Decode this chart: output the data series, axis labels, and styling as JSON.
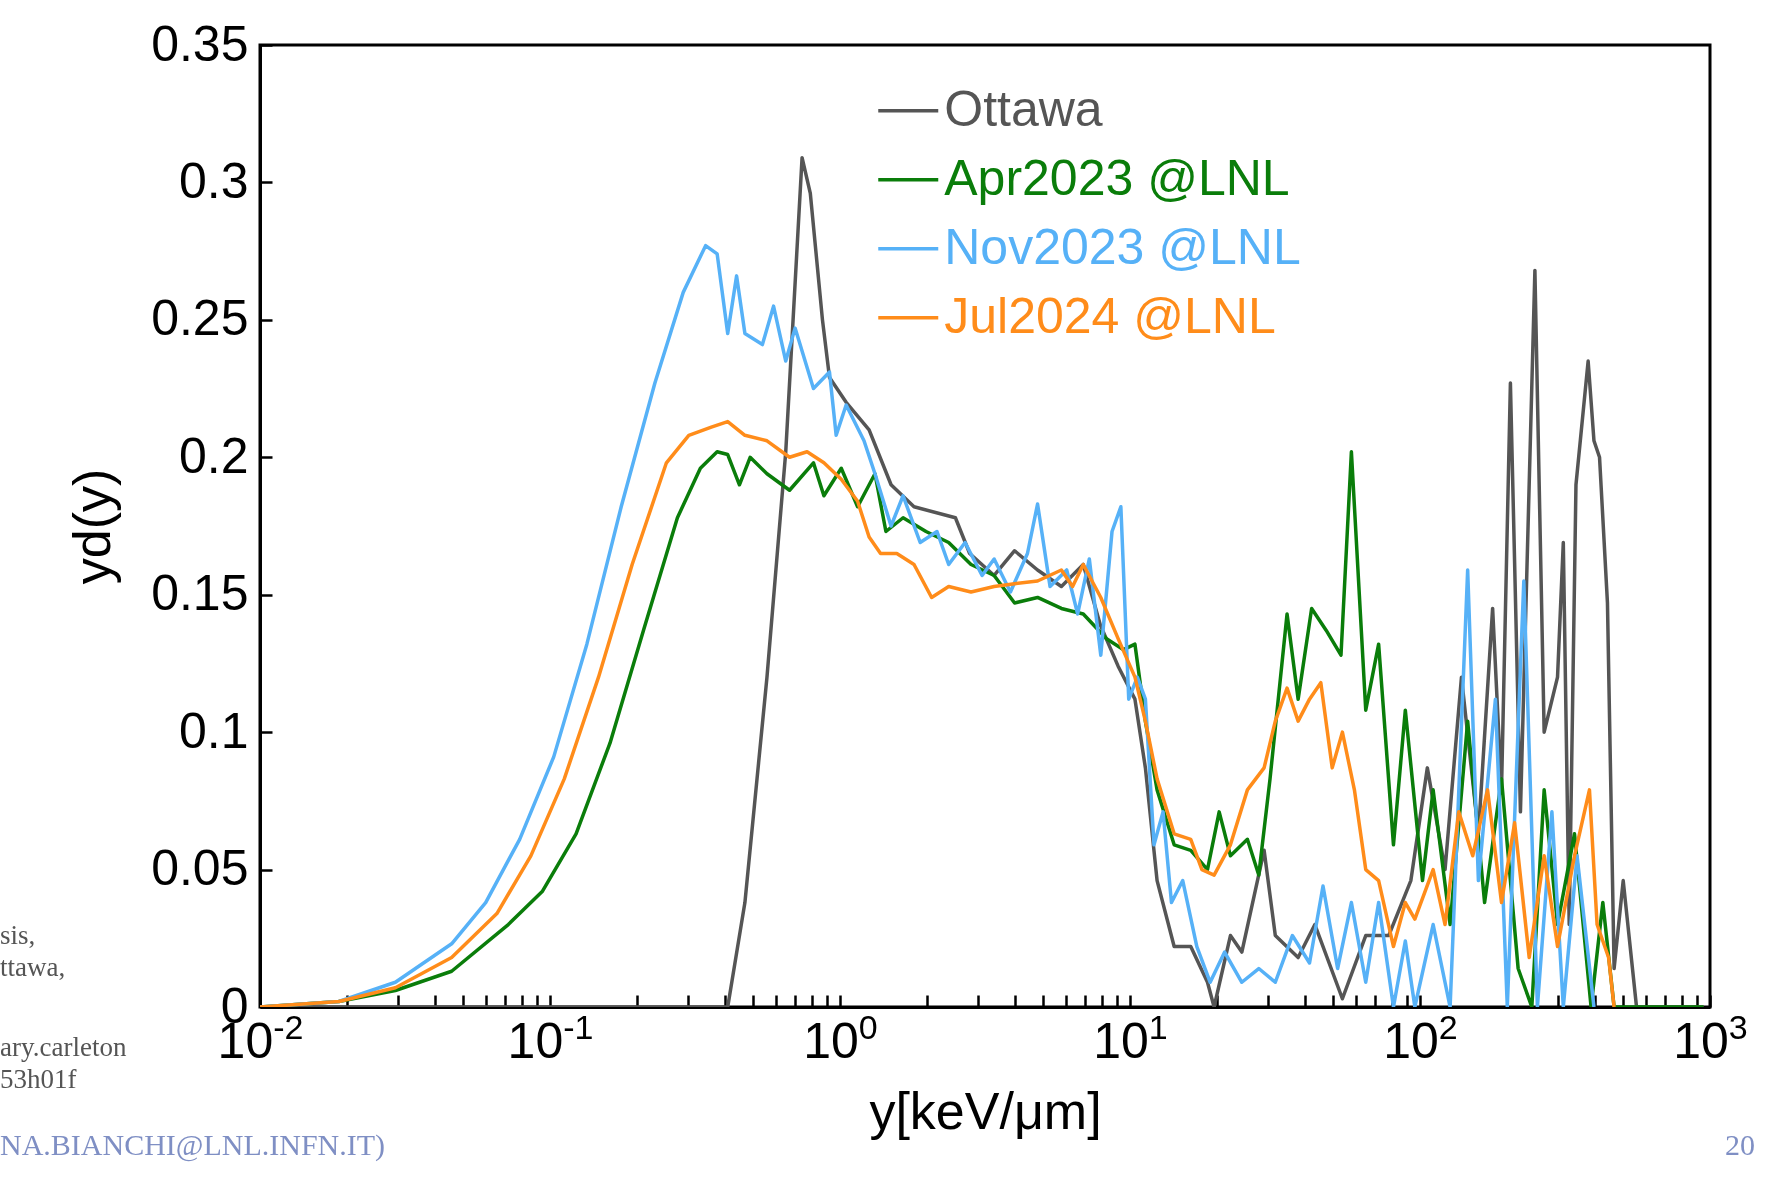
{
  "chart_data": {
    "type": "line",
    "xlabel": "y[keV/μm]",
    "ylabel": "yd(y)",
    "log": "x",
    "xlim": [
      0.01,
      1000
    ],
    "ylim": [
      0,
      0.35
    ],
    "xticks": [
      {
        "value": 0.01,
        "label": "10$^{-2}$"
      },
      {
        "value": 0.02,
        "label": null
      },
      {
        "value": 0.03,
        "label": null
      },
      {
        "value": 0.04,
        "label": null
      },
      {
        "value": 0.05,
        "label": null
      },
      {
        "value": 0.06,
        "label": null
      },
      {
        "value": 0.07,
        "label": null
      },
      {
        "value": 0.08,
        "label": null
      },
      {
        "value": 0.09,
        "label": null
      },
      {
        "value": 0.1,
        "label": "10$^{-1}$"
      },
      {
        "value": 0.2,
        "label": null
      },
      {
        "value": 0.3,
        "label": null
      },
      {
        "value": 0.4,
        "label": null
      },
      {
        "value": 0.5,
        "label": null
      },
      {
        "value": 0.6,
        "label": null
      },
      {
        "value": 0.7,
        "label": null
      },
      {
        "value": 0.8,
        "label": null
      },
      {
        "value": 0.9,
        "label": null
      },
      {
        "value": 1,
        "label": "10$^{0}$"
      },
      {
        "value": 2,
        "label": null
      },
      {
        "value": 3,
        "label": null
      },
      {
        "value": 4,
        "label": null
      },
      {
        "value": 5,
        "label": null
      },
      {
        "value": 6,
        "label": null
      },
      {
        "value": 7,
        "label": null
      },
      {
        "value": 8,
        "label": null
      },
      {
        "value": 9,
        "label": null
      },
      {
        "value": 10,
        "label": "10$^{1}$"
      },
      {
        "value": 20,
        "label": null
      },
      {
        "value": 30,
        "label": null
      },
      {
        "value": 40,
        "label": null
      },
      {
        "value": 50,
        "label": null
      },
      {
        "value": 60,
        "label": null
      },
      {
        "value": 70,
        "label": null
      },
      {
        "value": 80,
        "label": null
      },
      {
        "value": 90,
        "label": null
      },
      {
        "value": 100,
        "label": "10$^{2}$"
      },
      {
        "value": 200,
        "label": null
      },
      {
        "value": 300,
        "label": null
      },
      {
        "value": 400,
        "label": null
      },
      {
        "value": 500,
        "label": null
      },
      {
        "value": 600,
        "label": null
      },
      {
        "value": 700,
        "label": null
      },
      {
        "value": 800,
        "label": null
      },
      {
        "value": 900,
        "label": null
      },
      {
        "value": 1000,
        "label": "10$^{3}$"
      }
    ],
    "yticks": [
      0,
      0.05,
      0.1,
      0.15,
      0.2,
      0.25,
      0.3,
      0.35
    ],
    "grid": false,
    "legend": "top",
    "line_style": "solid",
    "marker": "none",
    "series": [
      {
        "name": "Ottawa",
        "color": "#555555",
        "x": [
          0.01,
          0.41,
          0.47,
          0.56,
          0.65,
          0.74,
          0.79,
          0.87,
          0.92,
          1.05,
          1.26,
          1.5,
          1.8,
          2.5,
          2.8,
          3.4,
          4.0,
          4.8,
          5.8,
          6.9,
          7.9,
          9.1,
          10.4,
          11.3,
          12.4,
          14.2,
          16.2,
          18.5,
          19.5,
          22.2,
          24.3,
          29,
          31.7,
          38,
          43.4,
          54,
          65,
          78,
          93,
          106,
          122,
          139,
          159,
          178,
          191,
          205,
          222,
          249,
          268,
          298,
          312,
          327,
          345,
          380,
          398,
          416,
          443,
          467,
          502,
          558,
          950
        ],
        "values": [
          0,
          0,
          0.038,
          0.12,
          0.202,
          0.309,
          0.296,
          0.25,
          0.229,
          0.22,
          0.21,
          0.19,
          0.182,
          0.178,
          0.165,
          0.157,
          0.166,
          0.159,
          0.153,
          0.161,
          0.139,
          0.124,
          0.112,
          0.087,
          0.046,
          0.022,
          0.022,
          0.009,
          0,
          0.026,
          0.02,
          0.057,
          0.026,
          0.018,
          0.03,
          0.003,
          0.026,
          0.026,
          0.046,
          0.087,
          0.05,
          0.12,
          0.063,
          0.145,
          0.079,
          0.227,
          0.071,
          0.268,
          0.1,
          0.12,
          0.169,
          0.03,
          0.19,
          0.235,
          0.206,
          0.2,
          0.147,
          0.014,
          0.046,
          0,
          0
        ]
      },
      {
        "name": "Apr2023 @LNL",
        "color": "#0a7d0a",
        "x": [
          0.01,
          0.0187,
          0.0293,
          0.0458,
          0.0718,
          0.094,
          0.123,
          0.161,
          0.21,
          0.275,
          0.33,
          0.377,
          0.41,
          0.45,
          0.49,
          0.56,
          0.67,
          0.81,
          0.88,
          1.01,
          1.15,
          1.32,
          1.44,
          1.65,
          1.98,
          2.37,
          2.83,
          3.4,
          4.0,
          4.8,
          5.8,
          6.9,
          8.3,
          9.5,
          10.4,
          11.3,
          12.4,
          14.2,
          16.2,
          18.5,
          20.3,
          22.2,
          25.4,
          27.8,
          30.4,
          34.8,
          38,
          42.3,
          47.5,
          53.4,
          58,
          65,
          72,
          81,
          89,
          102,
          111,
          127,
          146,
          167,
          191,
          218,
          243,
          268,
          298,
          341,
          389,
          427,
          467,
          950
        ],
        "values": [
          0,
          0.002,
          0.006,
          0.013,
          0.03,
          0.042,
          0.063,
          0.096,
          0.137,
          0.178,
          0.196,
          0.202,
          0.201,
          0.19,
          0.2,
          0.194,
          0.188,
          0.198,
          0.186,
          0.196,
          0.182,
          0.194,
          0.173,
          0.178,
          0.173,
          0.169,
          0.161,
          0.157,
          0.147,
          0.149,
          0.145,
          0.143,
          0.134,
          0.13,
          0.132,
          0.104,
          0.079,
          0.059,
          0.057,
          0.05,
          0.071,
          0.055,
          0.061,
          0.048,
          0.083,
          0.143,
          0.112,
          0.145,
          0.137,
          0.128,
          0.202,
          0.108,
          0.132,
          0.059,
          0.108,
          0.046,
          0.079,
          0.03,
          0.104,
          0.038,
          0.083,
          0.014,
          0,
          0.079,
          0.03,
          0.063,
          0,
          0.038,
          0,
          0
        ]
      },
      {
        "name": "Nov2023 @LNL",
        "color": "#56b1f7",
        "x": [
          0.01,
          0.0187,
          0.0293,
          0.0458,
          0.06,
          0.0786,
          0.103,
          0.134,
          0.176,
          0.23,
          0.288,
          0.344,
          0.377,
          0.41,
          0.44,
          0.47,
          0.54,
          0.59,
          0.65,
          0.7,
          0.81,
          0.92,
          0.97,
          1.05,
          1.21,
          1.32,
          1.5,
          1.65,
          1.89,
          2.16,
          2.37,
          2.7,
          3.09,
          3.4,
          3.87,
          4.43,
          4.8,
          5.3,
          6.05,
          6.6,
          7.24,
          7.93,
          8.67,
          9.3,
          9.9,
          10.6,
          11.3,
          12.1,
          13,
          13.9,
          15.2,
          17,
          18.9,
          21.2,
          24.3,
          27.8,
          31.7,
          36.3,
          41.6,
          46.3,
          52,
          58,
          65,
          72,
          81,
          89,
          96,
          111,
          127,
          146,
          159,
          182,
          200,
          228,
          254,
          285,
          312,
          348,
          398
        ],
        "values": [
          0,
          0.002,
          0.009,
          0.023,
          0.038,
          0.061,
          0.091,
          0.132,
          0.182,
          0.227,
          0.26,
          0.277,
          0.274,
          0.245,
          0.266,
          0.245,
          0.241,
          0.255,
          0.235,
          0.247,
          0.225,
          0.231,
          0.208,
          0.219,
          0.206,
          0.194,
          0.175,
          0.186,
          0.169,
          0.173,
          0.161,
          0.169,
          0.157,
          0.163,
          0.151,
          0.165,
          0.183,
          0.153,
          0.159,
          0.143,
          0.163,
          0.128,
          0.173,
          0.182,
          0.112,
          0.12,
          0.112,
          0.059,
          0.071,
          0.038,
          0.046,
          0.022,
          0.009,
          0.02,
          0.009,
          0.014,
          0.009,
          0.026,
          0.016,
          0.044,
          0.014,
          0.038,
          0.009,
          0.038,
          0,
          0.024,
          0,
          0.03,
          0,
          0.159,
          0.046,
          0.112,
          0,
          0.155,
          0,
          0.071,
          0,
          0.055,
          0
        ]
      },
      {
        "name": "Jul2024 @LNL",
        "color": "#ff8c1a",
        "x": [
          0.01,
          0.0187,
          0.0293,
          0.0458,
          0.0656,
          0.0859,
          0.112,
          0.147,
          0.192,
          0.252,
          0.301,
          0.36,
          0.41,
          0.47,
          0.56,
          0.67,
          0.77,
          0.88,
          1.01,
          1.15,
          1.26,
          1.38,
          1.57,
          1.8,
          2.07,
          2.37,
          2.83,
          3.4,
          4.0,
          4.8,
          5.8,
          6.34,
          6.9,
          7.93,
          9.1,
          10.4,
          11.3,
          12.4,
          14.2,
          16.2,
          17.7,
          19.5,
          22.2,
          25.4,
          29,
          31.7,
          34.8,
          38,
          41.6,
          45.5,
          49.8,
          54,
          59.4,
          65,
          72,
          81,
          89,
          96,
          111,
          122,
          136,
          152,
          171,
          191,
          212,
          238,
          268,
          298,
          341,
          384,
          408,
          447,
          467
        ],
        "values": [
          0,
          0.002,
          0.007,
          0.018,
          0.034,
          0.055,
          0.083,
          0.12,
          0.161,
          0.198,
          0.208,
          0.211,
          0.213,
          0.208,
          0.206,
          0.2,
          0.202,
          0.198,
          0.192,
          0.184,
          0.171,
          0.165,
          0.165,
          0.161,
          0.149,
          0.153,
          0.151,
          0.153,
          0.154,
          0.155,
          0.159,
          0.153,
          0.161,
          0.149,
          0.134,
          0.12,
          0.104,
          0.083,
          0.063,
          0.061,
          0.05,
          0.048,
          0.059,
          0.079,
          0.087,
          0.104,
          0.116,
          0.104,
          0.112,
          0.118,
          0.087,
          0.1,
          0.079,
          0.05,
          0.046,
          0.022,
          0.038,
          0.032,
          0.05,
          0.03,
          0.071,
          0.055,
          0.079,
          0.038,
          0.067,
          0.018,
          0.055,
          0.022,
          0.055,
          0.079,
          0.03,
          0.018,
          0
        ]
      }
    ],
    "annotations": [
      "sis,",
      "ttawa,",
      "ary.carleton",
      "53h01f",
      "NA.BIANCHI@LNL.INFN.IT)",
      "20"
    ]
  }
}
